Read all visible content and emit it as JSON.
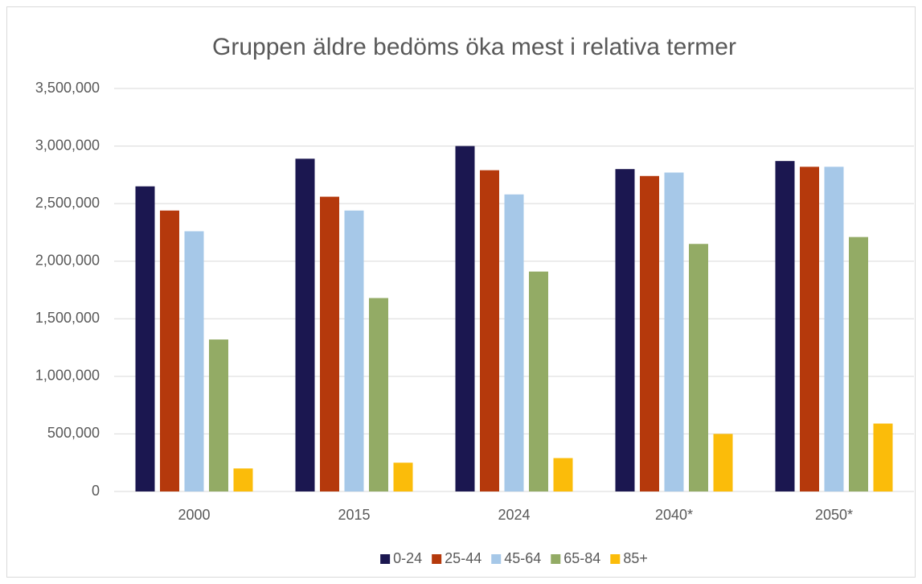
{
  "chart_data": {
    "type": "bar",
    "title": "Gruppen äldre bedöms öka mest i relativa termer",
    "categories": [
      "2000",
      "2015",
      "2024",
      "2040*",
      "2050*"
    ],
    "series": [
      {
        "name": "0-24",
        "color": "#1b1750",
        "values": [
          2650000,
          2890000,
          3000000,
          2800000,
          2870000
        ]
      },
      {
        "name": "25-44",
        "color": "#b5390c",
        "values": [
          2440000,
          2560000,
          2790000,
          2740000,
          2820000
        ]
      },
      {
        "name": "45-64",
        "color": "#a6c8e8",
        "values": [
          2260000,
          2440000,
          2580000,
          2770000,
          2820000
        ]
      },
      {
        "name": "65-84",
        "color": "#93ab65",
        "values": [
          1320000,
          1680000,
          1910000,
          2150000,
          2210000
        ]
      },
      {
        "name": "85+",
        "color": "#fbbc0a",
        "values": [
          200000,
          250000,
          290000,
          500000,
          590000
        ]
      }
    ],
    "ylim": [
      0,
      3500000
    ],
    "yticks": [
      0,
      {
        "value": 500000,
        "label": "500,000"
      },
      {
        "value": 1000000,
        "label": "1,000,000"
      },
      {
        "value": 1500000,
        "label": "1,500,000"
      },
      {
        "value": 2000000,
        "label": "2,000,000"
      },
      {
        "value": 2500000,
        "label": "2,500,000"
      },
      {
        "value": 3000000,
        "label": "3,000,000"
      },
      {
        "value": 3500000,
        "label": "3,500,000"
      }
    ],
    "grid": true,
    "legend": "bottom"
  }
}
